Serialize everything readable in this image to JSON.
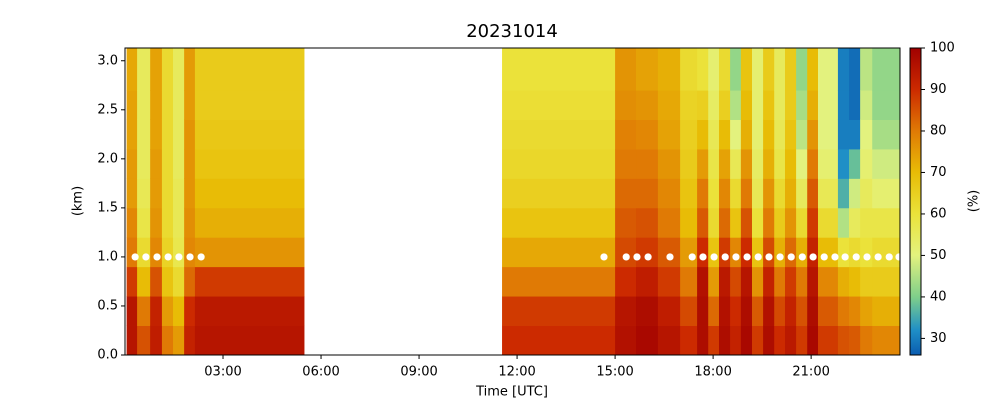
{
  "chart_data": {
    "type": "heatmap",
    "title": "20231014",
    "xlabel": "Time [UTC]",
    "ylabel": "(km)",
    "colorbar_label": "(%)",
    "xlim": [
      0,
      23.72
    ],
    "ylim": [
      0,
      3.13
    ],
    "clim": [
      26,
      100
    ],
    "xticks": [
      {
        "value": 3,
        "label": "03:00"
      },
      {
        "value": 6,
        "label": "06:00"
      },
      {
        "value": 9,
        "label": "09:00"
      },
      {
        "value": 12,
        "label": "12:00"
      },
      {
        "value": 15,
        "label": "15:00"
      },
      {
        "value": 18,
        "label": "18:00"
      },
      {
        "value": 21,
        "label": "21:00"
      }
    ],
    "yticks": [
      {
        "value": 0,
        "label": "0.0"
      },
      {
        "value": 0.5,
        "label": "0.5"
      },
      {
        "value": 1,
        "label": "1.0"
      },
      {
        "value": 1.5,
        "label": "1.5"
      },
      {
        "value": 2,
        "label": "2.0"
      },
      {
        "value": 2.5,
        "label": "2.5"
      },
      {
        "value": 3,
        "label": "3.0"
      }
    ],
    "cticks": [
      30,
      40,
      50,
      60,
      70,
      80,
      90,
      100
    ],
    "colormap": [
      {
        "value": 26,
        "color": "#0b5cb0"
      },
      {
        "value": 32,
        "color": "#1f8fc6"
      },
      {
        "value": 40,
        "color": "#7fcf8a"
      },
      {
        "value": 50,
        "color": "#e3f27e"
      },
      {
        "value": 60,
        "color": "#ebe23a"
      },
      {
        "value": 70,
        "color": "#e8bc06"
      },
      {
        "value": 80,
        "color": "#e07a05"
      },
      {
        "value": 90,
        "color": "#cc2a00"
      },
      {
        "value": 100,
        "color": "#a00000"
      }
    ],
    "marker_color": "#ffffff",
    "x_edges": [
      0.05,
      0.37,
      0.77,
      1.13,
      1.47,
      1.81,
      2.14,
      5.48,
      11.54,
      15.0,
      15.64,
      16.31,
      16.99,
      17.51,
      17.85,
      18.18,
      18.52,
      18.85,
      19.19,
      19.53,
      19.87,
      20.2,
      20.54,
      20.88,
      21.21,
      21.82,
      22.16,
      22.5,
      22.87,
      23.72
    ],
    "y_edges": [
      0,
      0.3,
      0.6,
      0.9,
      1.2,
      1.5,
      1.8,
      2.1,
      2.4,
      2.7,
      3.13
    ],
    "z": [
      [
        95,
        95,
        88,
        80,
        78,
        75,
        75,
        74,
        74,
        73
      ],
      [
        85,
        80,
        70,
        62,
        58,
        56,
        55,
        55,
        55,
        55
      ],
      [
        93,
        92,
        85,
        78,
        76,
        75,
        75,
        74,
        74,
        74
      ],
      [
        80,
        75,
        68,
        64,
        62,
        62,
        62,
        62,
        62,
        62
      ],
      [
        75,
        70,
        62,
        57,
        56,
        56,
        55,
        55,
        55,
        55
      ],
      [
        92,
        90,
        82,
        78,
        77,
        76,
        76,
        76,
        75,
        75
      ],
      [
        95,
        94,
        88,
        76,
        72,
        70,
        68,
        67,
        66,
        66
      ],
      [
        null,
        null,
        null,
        null,
        null,
        null,
        null,
        null,
        null,
        null
      ],
      [
        90,
        88,
        80,
        73,
        68,
        65,
        63,
        62,
        61,
        60
      ],
      [
        96,
        95,
        90,
        86,
        84,
        82,
        80,
        79,
        77,
        76
      ],
      [
        98,
        97,
        93,
        88,
        85,
        82,
        80,
        78,
        76,
        74
      ],
      [
        95,
        93,
        88,
        84,
        80,
        78,
        76,
        74,
        73,
        72
      ],
      [
        90,
        86,
        80,
        75,
        70,
        68,
        66,
        65,
        64,
        62
      ],
      [
        97,
        97,
        96,
        90,
        84,
        80,
        75,
        70,
        65,
        60
      ],
      [
        88,
        82,
        75,
        68,
        62,
        60,
        58,
        56,
        54,
        52
      ],
      [
        97,
        96,
        94,
        88,
        82,
        78,
        74,
        70,
        65,
        62
      ],
      [
        92,
        90,
        86,
        78,
        68,
        62,
        56,
        50,
        45,
        42
      ],
      [
        98,
        97,
        95,
        90,
        85,
        80,
        76,
        72,
        70,
        68
      ],
      [
        88,
        84,
        76,
        68,
        60,
        56,
        54,
        52,
        52,
        52
      ],
      [
        97,
        96,
        92,
        86,
        80,
        76,
        72,
        70,
        68,
        66
      ],
      [
        90,
        86,
        80,
        72,
        66,
        62,
        58,
        56,
        55,
        55
      ],
      [
        94,
        92,
        88,
        82,
        76,
        72,
        70,
        68,
        66,
        66
      ],
      [
        88,
        85,
        80,
        72,
        62,
        55,
        50,
        46,
        44,
        42
      ],
      [
        98,
        97,
        95,
        92,
        88,
        84,
        80,
        76,
        72,
        70
      ],
      [
        88,
        84,
        78,
        70,
        62,
        56,
        52,
        50,
        50,
        50
      ],
      [
        85,
        80,
        72,
        60,
        45,
        36,
        32,
        30,
        30,
        30
      ],
      [
        84,
        78,
        70,
        62,
        55,
        48,
        38,
        30,
        28,
        28
      ],
      [
        80,
        74,
        66,
        60,
        58,
        55,
        52,
        50,
        48,
        46
      ],
      [
        78,
        72,
        66,
        62,
        58,
        52,
        48,
        44,
        42,
        42
      ]
    ],
    "points": {
      "x": [
        0.31,
        0.64,
        0.98,
        1.32,
        1.65,
        1.99,
        2.33,
        14.66,
        15.34,
        15.67,
        16.01,
        16.68,
        17.36,
        17.69,
        18.03,
        18.37,
        18.7,
        19.04,
        19.38,
        19.71,
        20.05,
        20.39,
        20.73,
        21.06,
        21.4,
        21.73,
        22.04,
        22.38,
        22.71,
        23.05,
        23.39,
        23.69
      ],
      "y": [
        1,
        1,
        1,
        1,
        1,
        1,
        1,
        1,
        1,
        1,
        1,
        1,
        1,
        1,
        1,
        1,
        1,
        1,
        1,
        1,
        1,
        1,
        1,
        1,
        1,
        1,
        1,
        1,
        1,
        1,
        1,
        1
      ]
    }
  }
}
